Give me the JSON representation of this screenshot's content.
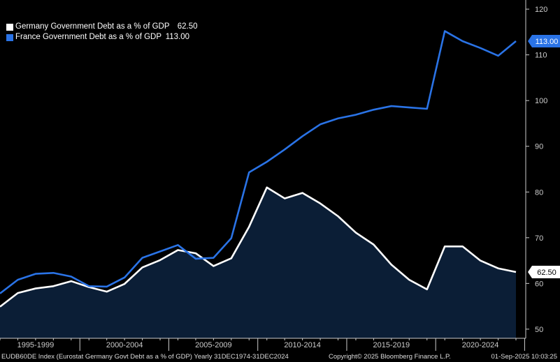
{
  "colors": {
    "background": "#000000",
    "germany_line": "#ffffff",
    "germany_fill": "#0b1e36",
    "france_line": "#2a73e6",
    "axis": "#cccccc"
  },
  "legend": [
    {
      "label": "Germany Government Debt as a % of GDP",
      "value": "62.50",
      "color": "#ffffff"
    },
    {
      "label": "France Government Debt as a % of GDP",
      "value": "113.00",
      "color": "#2a73e6"
    }
  ],
  "last_value_tags": {
    "germany": "62.50",
    "france": "113.00"
  },
  "footer": {
    "left": "EUDB60DE Index (Eurostat Germany Govt Debt as a % of GDP)  Yearly 31DEC1974-31DEC2024",
    "center": "Copyright© 2025 Bloomberg Finance L.P.",
    "right": "01-Sep-2025 10:03:25"
  },
  "chart_data": {
    "type": "area",
    "x": [
      1995,
      1996,
      1997,
      1998,
      1999,
      2000,
      2001,
      2002,
      2003,
      2004,
      2005,
      2006,
      2007,
      2008,
      2009,
      2010,
      2011,
      2012,
      2013,
      2014,
      2015,
      2016,
      2017,
      2018,
      2019,
      2020,
      2021,
      2022,
      2023,
      2024
    ],
    "series": [
      {
        "name": "Germany Government Debt as a % of GDP",
        "values": [
          54.9,
          57.9,
          58.9,
          59.4,
          60.5,
          59.2,
          58.2,
          59.9,
          63.5,
          65.1,
          67.3,
          66.6,
          63.8,
          65.5,
          72.4,
          81.0,
          78.6,
          79.8,
          77.5,
          74.7,
          71.1,
          68.5,
          64.1,
          60.8,
          58.7,
          68.1,
          68.1,
          65.0,
          63.3,
          62.5
        ]
      },
      {
        "name": "France Government Debt as a % of GDP",
        "values": [
          57.8,
          60.8,
          62.1,
          62.3,
          61.5,
          59.4,
          59.3,
          61.3,
          65.6,
          67.0,
          68.4,
          65.4,
          65.6,
          69.9,
          84.3,
          86.6,
          89.3,
          92.2,
          94.8,
          96.1,
          96.9,
          98.0,
          98.8,
          98.5,
          98.2,
          115.2,
          113.0,
          111.5,
          109.8,
          113.0
        ]
      }
    ],
    "ylim": [
      48,
      122
    ],
    "yticks": [
      50,
      60,
      70,
      80,
      90,
      100,
      110,
      120
    ],
    "xtick_labels": [
      "1995-1999",
      "2000-2004",
      "2005-2009",
      "2010-2014",
      "2015-2019",
      "2020-2024"
    ],
    "legend_position": "top-left",
    "grid": false
  }
}
